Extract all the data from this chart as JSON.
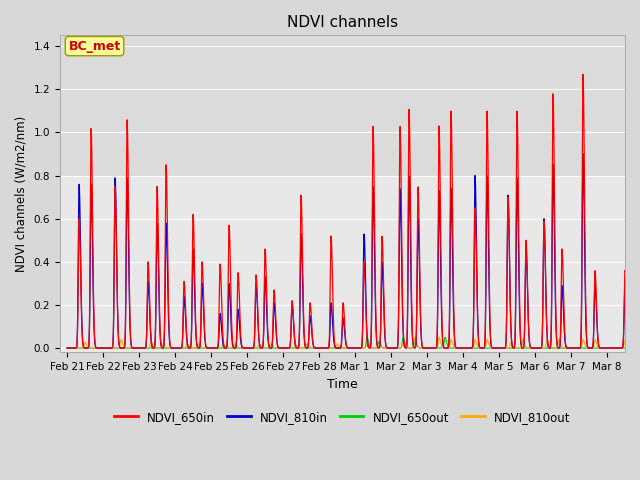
{
  "title": "NDVI channels",
  "xlabel": "Time",
  "ylabel": "NDVI channels (W/m2/nm)",
  "ylim": [
    -0.02,
    1.45
  ],
  "yticks": [
    0.0,
    0.2,
    0.4,
    0.6,
    0.8,
    1.0,
    1.2,
    1.4
  ],
  "bg_color": "#d8d8d8",
  "plot_bg": "#e8e8e8",
  "band_color": "#d0d0d0",
  "colors": {
    "NDVI_650in": "#ff0000",
    "NDVI_810in": "#0000cc",
    "NDVI_650out": "#00cc00",
    "NDVI_810out": "#ffaa00"
  },
  "annotation_text": "BC_met",
  "annotation_color": "#cc0000",
  "annotation_bg": "#ffff99",
  "day_labels": [
    "Feb 21",
    "Feb 22",
    "Feb 23",
    "Feb 24",
    "Feb 25",
    "Feb 26",
    "Feb 27",
    "Feb 28",
    "Mar 1",
    "Mar 2",
    "Mar 3",
    "Mar 4",
    "Mar 5",
    "Mar 6",
    "Mar 7",
    "Mar 8"
  ],
  "n_days": 16,
  "spikes_per_day": [
    [
      [
        0.6,
        1.02
      ],
      [
        0.76,
        0.76
      ]
    ],
    [
      [
        0.75,
        1.06
      ],
      [
        0.79,
        0.79
      ]
    ],
    [
      [
        0.4,
        0.75,
        0.85
      ],
      [
        0.31,
        0.58,
        0.58
      ]
    ],
    [
      [
        0.31,
        0.62,
        0.4
      ],
      [
        0.24,
        0.46,
        0.3
      ]
    ],
    [
      [
        0.39,
        0.57,
        0.35
      ],
      [
        0.16,
        0.3,
        0.18
      ]
    ],
    [
      [
        0.34,
        0.46,
        0.27
      ],
      [
        0.3,
        0.33,
        0.21
      ]
    ],
    [
      [
        0.22,
        0.71,
        0.21
      ],
      [
        0.2,
        0.53,
        0.15
      ]
    ],
    [
      [
        0.52,
        0.21
      ],
      [
        0.21,
        0.14
      ]
    ],
    [
      [
        0.4,
        1.03,
        0.52
      ],
      [
        0.53,
        0.75,
        0.4
      ]
    ],
    [
      [
        1.03,
        1.11,
        0.75
      ],
      [
        0.74,
        0.8,
        0.6
      ]
    ],
    [
      [
        1.03,
        1.1
      ],
      [
        0.73,
        0.74
      ]
    ],
    [
      [
        0.65,
        1.1
      ],
      [
        0.8,
        0.8
      ]
    ],
    [
      [
        0.7,
        1.1,
        0.5
      ],
      [
        0.71,
        0.79,
        0.46
      ]
    ],
    [
      [
        0.59,
        1.18,
        0.46
      ],
      [
        0.6,
        0.85,
        0.29
      ]
    ],
    [
      [
        1.27,
        0.36
      ],
      [
        0.9,
        0.3
      ]
    ],
    [
      [
        0.36
      ],
      [
        0.3
      ]
    ]
  ],
  "spikes_810out": [
    [
      0.025
    ],
    [
      0.04
    ],
    [
      0.03,
      0.02
    ],
    [
      0.02,
      0.02
    ],
    [
      0.02,
      0.02
    ],
    [
      0.02,
      0.02
    ],
    [
      0.02,
      0.02
    ],
    [
      0.02
    ],
    [
      0.02,
      0.02
    ],
    [
      0.025,
      0.05
    ],
    [
      0.05,
      0.04
    ],
    [
      0.04,
      0.04
    ],
    [
      0.03,
      0.04
    ],
    [
      0.04,
      0.04
    ],
    [
      0.04,
      0.04
    ],
    [
      0.04
    ]
  ],
  "spikes_650out": [
    [
      0.0
    ],
    [
      0.0
    ],
    [
      0.0
    ],
    [
      0.0
    ],
    [
      0.0
    ],
    [
      0.0
    ],
    [
      0.0
    ],
    [
      0.0
    ],
    [
      0.05,
      0.03
    ],
    [
      0.05,
      0.04
    ],
    [
      0.05
    ],
    [
      0.0
    ],
    [
      0.0
    ],
    [
      0.0
    ],
    [
      0.0
    ],
    [
      0.0
    ]
  ]
}
